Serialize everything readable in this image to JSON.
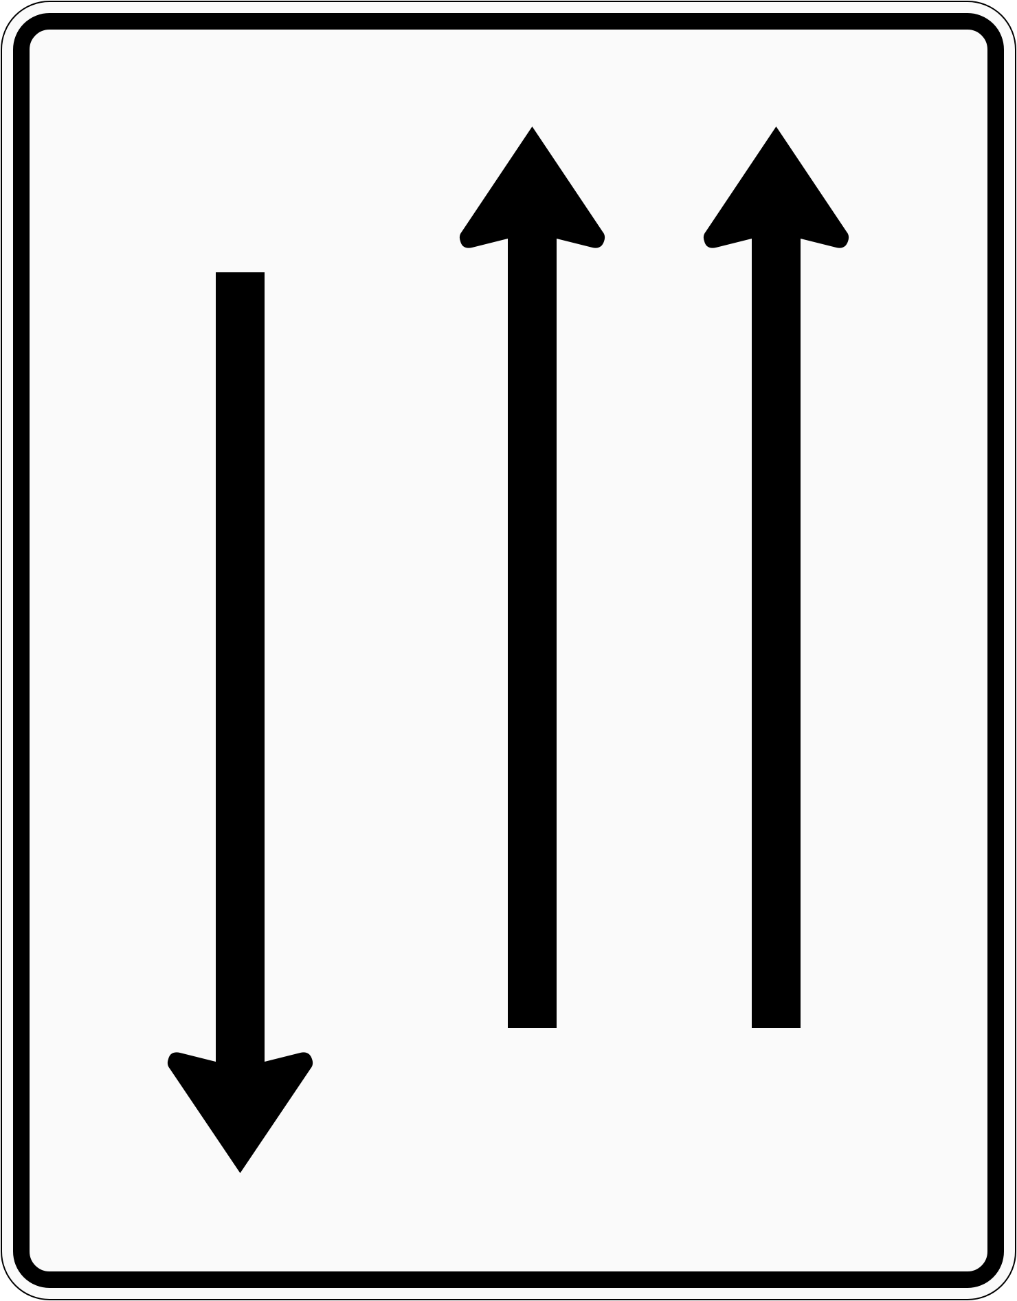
{
  "sign": {
    "kind": "lane-direction-sign",
    "colors": {
      "background": "#fafafa",
      "symbol": "#000000",
      "outer_edge": "#000000"
    },
    "lanes": [
      {
        "icon": "arrow-down-icon",
        "direction": "down"
      },
      {
        "icon": "arrow-up-icon",
        "direction": "up"
      },
      {
        "icon": "arrow-up-icon",
        "direction": "up"
      }
    ]
  }
}
